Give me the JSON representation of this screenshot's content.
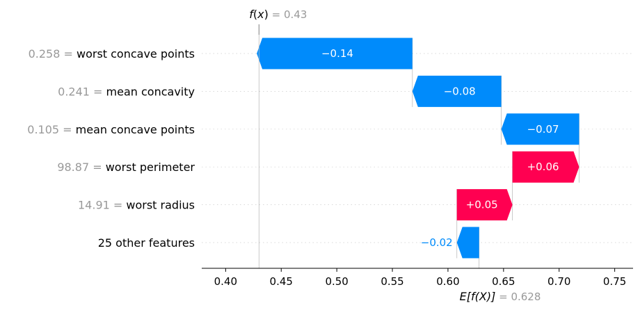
{
  "chart_data": {
    "type": "waterfall",
    "fx": {
      "name": "f(x)",
      "prefix": "f",
      "var": "x",
      "value": 0.43,
      "label": "0.43"
    },
    "ex": {
      "name": "E[f(X)]",
      "value": 0.628,
      "label": "0.628"
    },
    "features": [
      {
        "name": "worst concave points",
        "value": "0.258",
        "contribution": -0.14,
        "label": "−0.14"
      },
      {
        "name": "mean concavity",
        "value": "0.241",
        "contribution": -0.08,
        "label": "−0.08"
      },
      {
        "name": "mean concave points",
        "value": "0.105",
        "contribution": -0.07,
        "label": "−0.07"
      },
      {
        "name": "worst perimeter",
        "value": "98.87",
        "contribution": 0.06,
        "label": "+0.06"
      },
      {
        "name": "worst radius",
        "value": "14.91",
        "contribution": 0.05,
        "label": "+0.05"
      },
      {
        "name": "25 other features",
        "value": null,
        "contribution": -0.02,
        "label": "−0.02"
      }
    ],
    "xticks": [
      0.4,
      0.45,
      0.5,
      0.55,
      0.6,
      0.65,
      0.7,
      0.75
    ],
    "xtick_labels": [
      "0.40",
      "0.45",
      "0.50",
      "0.55",
      "0.60",
      "0.65",
      "0.70",
      "0.75"
    ],
    "xlim": [
      0.3785,
      0.7665
    ],
    "colors": {
      "negative": "#008bfb",
      "positive": "#ff0051",
      "muted": "#999999"
    }
  }
}
